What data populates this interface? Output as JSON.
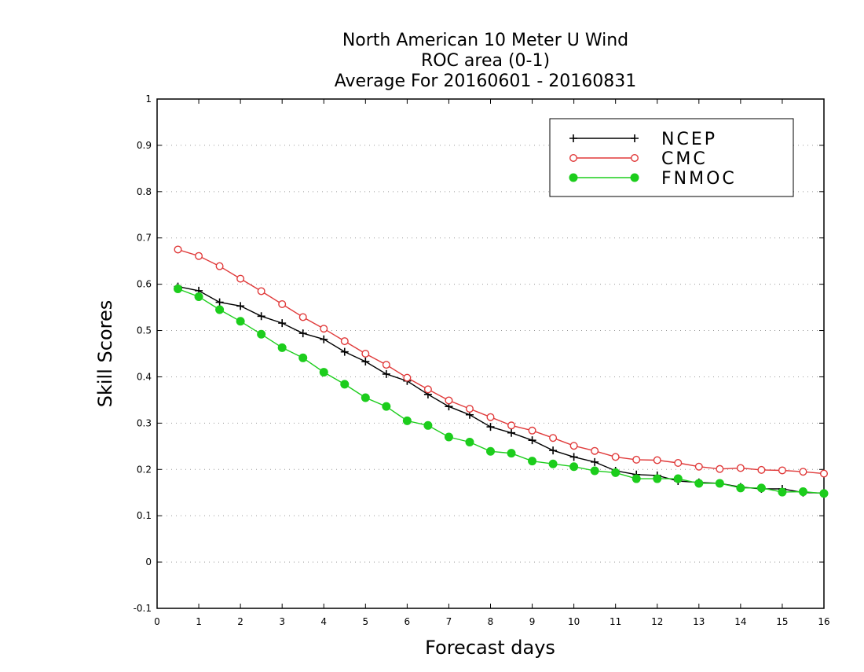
{
  "chart_data": {
    "type": "line",
    "title_lines": [
      "North American 10 Meter U Wind",
      "ROC area (0-1)",
      "Average For 20160601 - 20160831"
    ],
    "xlabel": "Forecast days",
    "ylabel": "Skill Scores",
    "xlim": [
      0,
      16
    ],
    "ylim": [
      -0.1,
      1
    ],
    "x_ticks": [
      0,
      1,
      2,
      3,
      4,
      5,
      6,
      7,
      8,
      9,
      10,
      11,
      12,
      13,
      14,
      15,
      16
    ],
    "y_ticks": [
      -0.1,
      0,
      0.1,
      0.2,
      0.3,
      0.4,
      0.5,
      0.6,
      0.7,
      0.8,
      0.9,
      1
    ],
    "y_tick_labels": [
      "-0.1",
      "0",
      "0.1",
      "0.2",
      "0.3",
      "0.4",
      "0.5",
      "0.6",
      "0.7",
      "0.8",
      "0.9",
      "1"
    ],
    "grid": "horizontal dotted",
    "legend_position": "top-right",
    "x": [
      0.5,
      1,
      1.5,
      2,
      2.5,
      3,
      3.5,
      4,
      4.5,
      5,
      5.5,
      6,
      6.5,
      7,
      7.5,
      8,
      8.5,
      9,
      9.5,
      10,
      10.5,
      11,
      11.5,
      12,
      12.5,
      13,
      13.5,
      14,
      14.5,
      15,
      15.5,
      16
    ],
    "series": [
      {
        "name": "NCEP",
        "color": "#000000",
        "marker": "plus",
        "values": [
          0.595,
          0.586,
          0.561,
          0.553,
          0.531,
          0.516,
          0.494,
          0.481,
          0.454,
          0.433,
          0.406,
          0.391,
          0.362,
          0.336,
          0.318,
          0.292,
          0.279,
          0.263,
          0.241,
          0.227,
          0.216,
          0.197,
          0.189,
          0.187,
          0.175,
          0.172,
          0.17,
          0.162,
          0.158,
          0.158,
          0.15,
          0.149
        ]
      },
      {
        "name": "CMC",
        "color": "#e03a3a",
        "marker": "open-circle",
        "values": [
          0.675,
          0.661,
          0.639,
          0.612,
          0.585,
          0.557,
          0.529,
          0.504,
          0.477,
          0.45,
          0.426,
          0.398,
          0.373,
          0.349,
          0.331,
          0.313,
          0.295,
          0.284,
          0.268,
          0.251,
          0.24,
          0.227,
          0.221,
          0.22,
          0.214,
          0.206,
          0.201,
          0.203,
          0.199,
          0.198,
          0.195,
          0.191
        ]
      },
      {
        "name": "FNMOC",
        "color": "#1ccd1c",
        "marker": "filled-circle",
        "values": [
          0.59,
          0.573,
          0.545,
          0.52,
          0.492,
          0.463,
          0.441,
          0.41,
          0.384,
          0.355,
          0.336,
          0.305,
          0.295,
          0.27,
          0.259,
          0.239,
          0.235,
          0.218,
          0.212,
          0.206,
          0.197,
          0.193,
          0.18,
          0.18,
          0.18,
          0.17,
          0.17,
          0.16,
          0.16,
          0.151,
          0.152,
          0.148
        ]
      }
    ]
  }
}
